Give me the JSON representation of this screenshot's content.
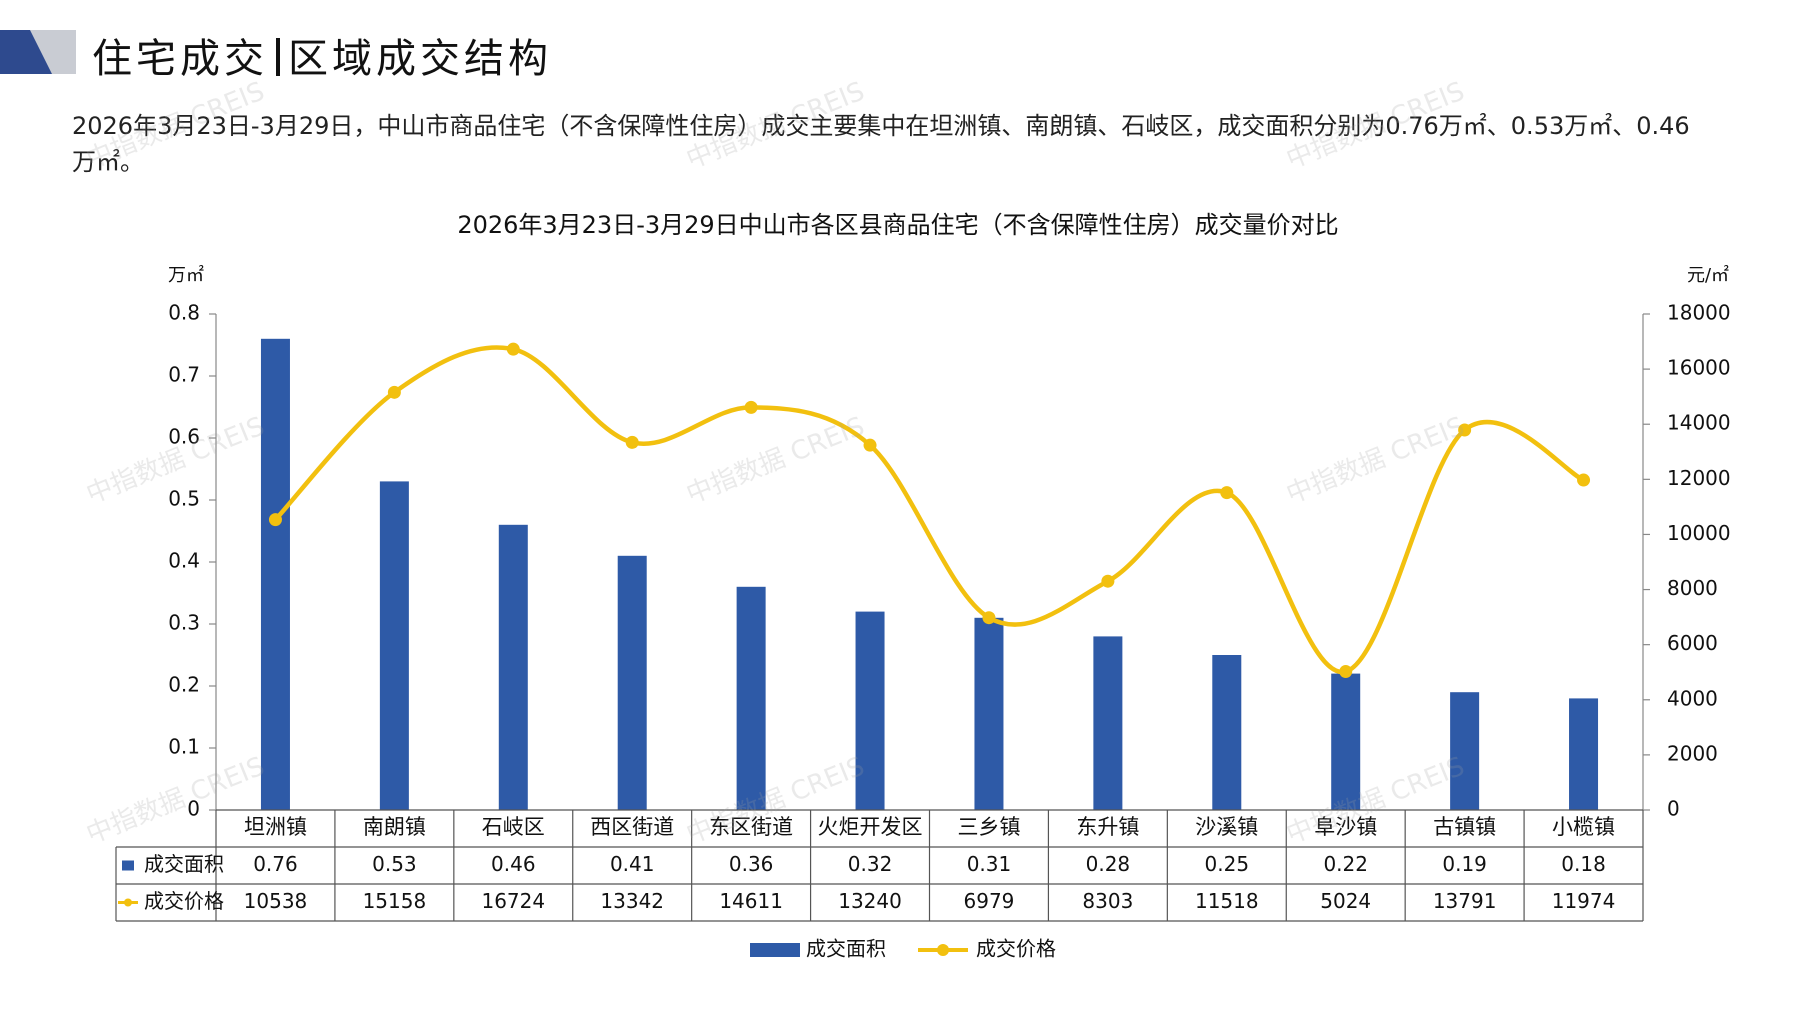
{
  "page": {
    "title_left": "住宅成交",
    "title_right": "区域成交结构",
    "summary": "2026年3月23日-3月29日，中山市商品住宅（不含保障性住房）成交主要集中在坦洲镇、南朗镇、石岐区，成交面积分别为0.76万㎡、0.53万㎡、0.46万㎡。",
    "watermark": "中指数据 CREIS"
  },
  "colors": {
    "bar": "#2E5AA7",
    "line": "#F2C00F",
    "header_dark": "#2E4A8E",
    "header_light": "#C9CCD3"
  },
  "chart_data": {
    "type": "bar",
    "title": "2026年3月23日-3月29日中山市各区县商品住宅（不含保障性住房）成交量价对比",
    "y_left_unit": "万㎡",
    "y_right_unit": "元/㎡",
    "y_left_lim": [
      0,
      0.8
    ],
    "y_left_ticks": [
      "0",
      "0.1",
      "0.2",
      "0.3",
      "0.4",
      "0.5",
      "0.6",
      "0.7",
      "0.8"
    ],
    "y_right_lim": [
      0,
      18000
    ],
    "y_right_ticks": [
      "0",
      "2000",
      "4000",
      "6000",
      "8000",
      "10000",
      "12000",
      "14000",
      "16000",
      "18000"
    ],
    "categories": [
      "坦洲镇",
      "南朗镇",
      "石岐区",
      "西区街道",
      "东区街道",
      "火炬开发区",
      "三乡镇",
      "东升镇",
      "沙溪镇",
      "阜沙镇",
      "古镇镇",
      "小榄镇"
    ],
    "series": [
      {
        "name": "成交面积",
        "kind": "bar",
        "axis": "left",
        "values": [
          0.76,
          0.53,
          0.46,
          0.41,
          0.36,
          0.32,
          0.31,
          0.28,
          0.25,
          0.22,
          0.19,
          0.18
        ],
        "labels": [
          "0.76",
          "0.53",
          "0.46",
          "0.41",
          "0.36",
          "0.32",
          "0.31",
          "0.28",
          "0.25",
          "0.22",
          "0.19",
          "0.18"
        ]
      },
      {
        "name": "成交价格",
        "kind": "line",
        "axis": "right",
        "values": [
          10538,
          15158,
          16724,
          13342,
          14611,
          13240,
          6979,
          8303,
          11518,
          5024,
          13791,
          11974
        ],
        "labels": [
          "10538",
          "15158",
          "16724",
          "13342",
          "14611",
          "13240",
          "6979",
          "8303",
          "11518",
          "5024",
          "13791",
          "11974"
        ]
      }
    ],
    "legend_position": "bottom-center",
    "grid": false
  }
}
